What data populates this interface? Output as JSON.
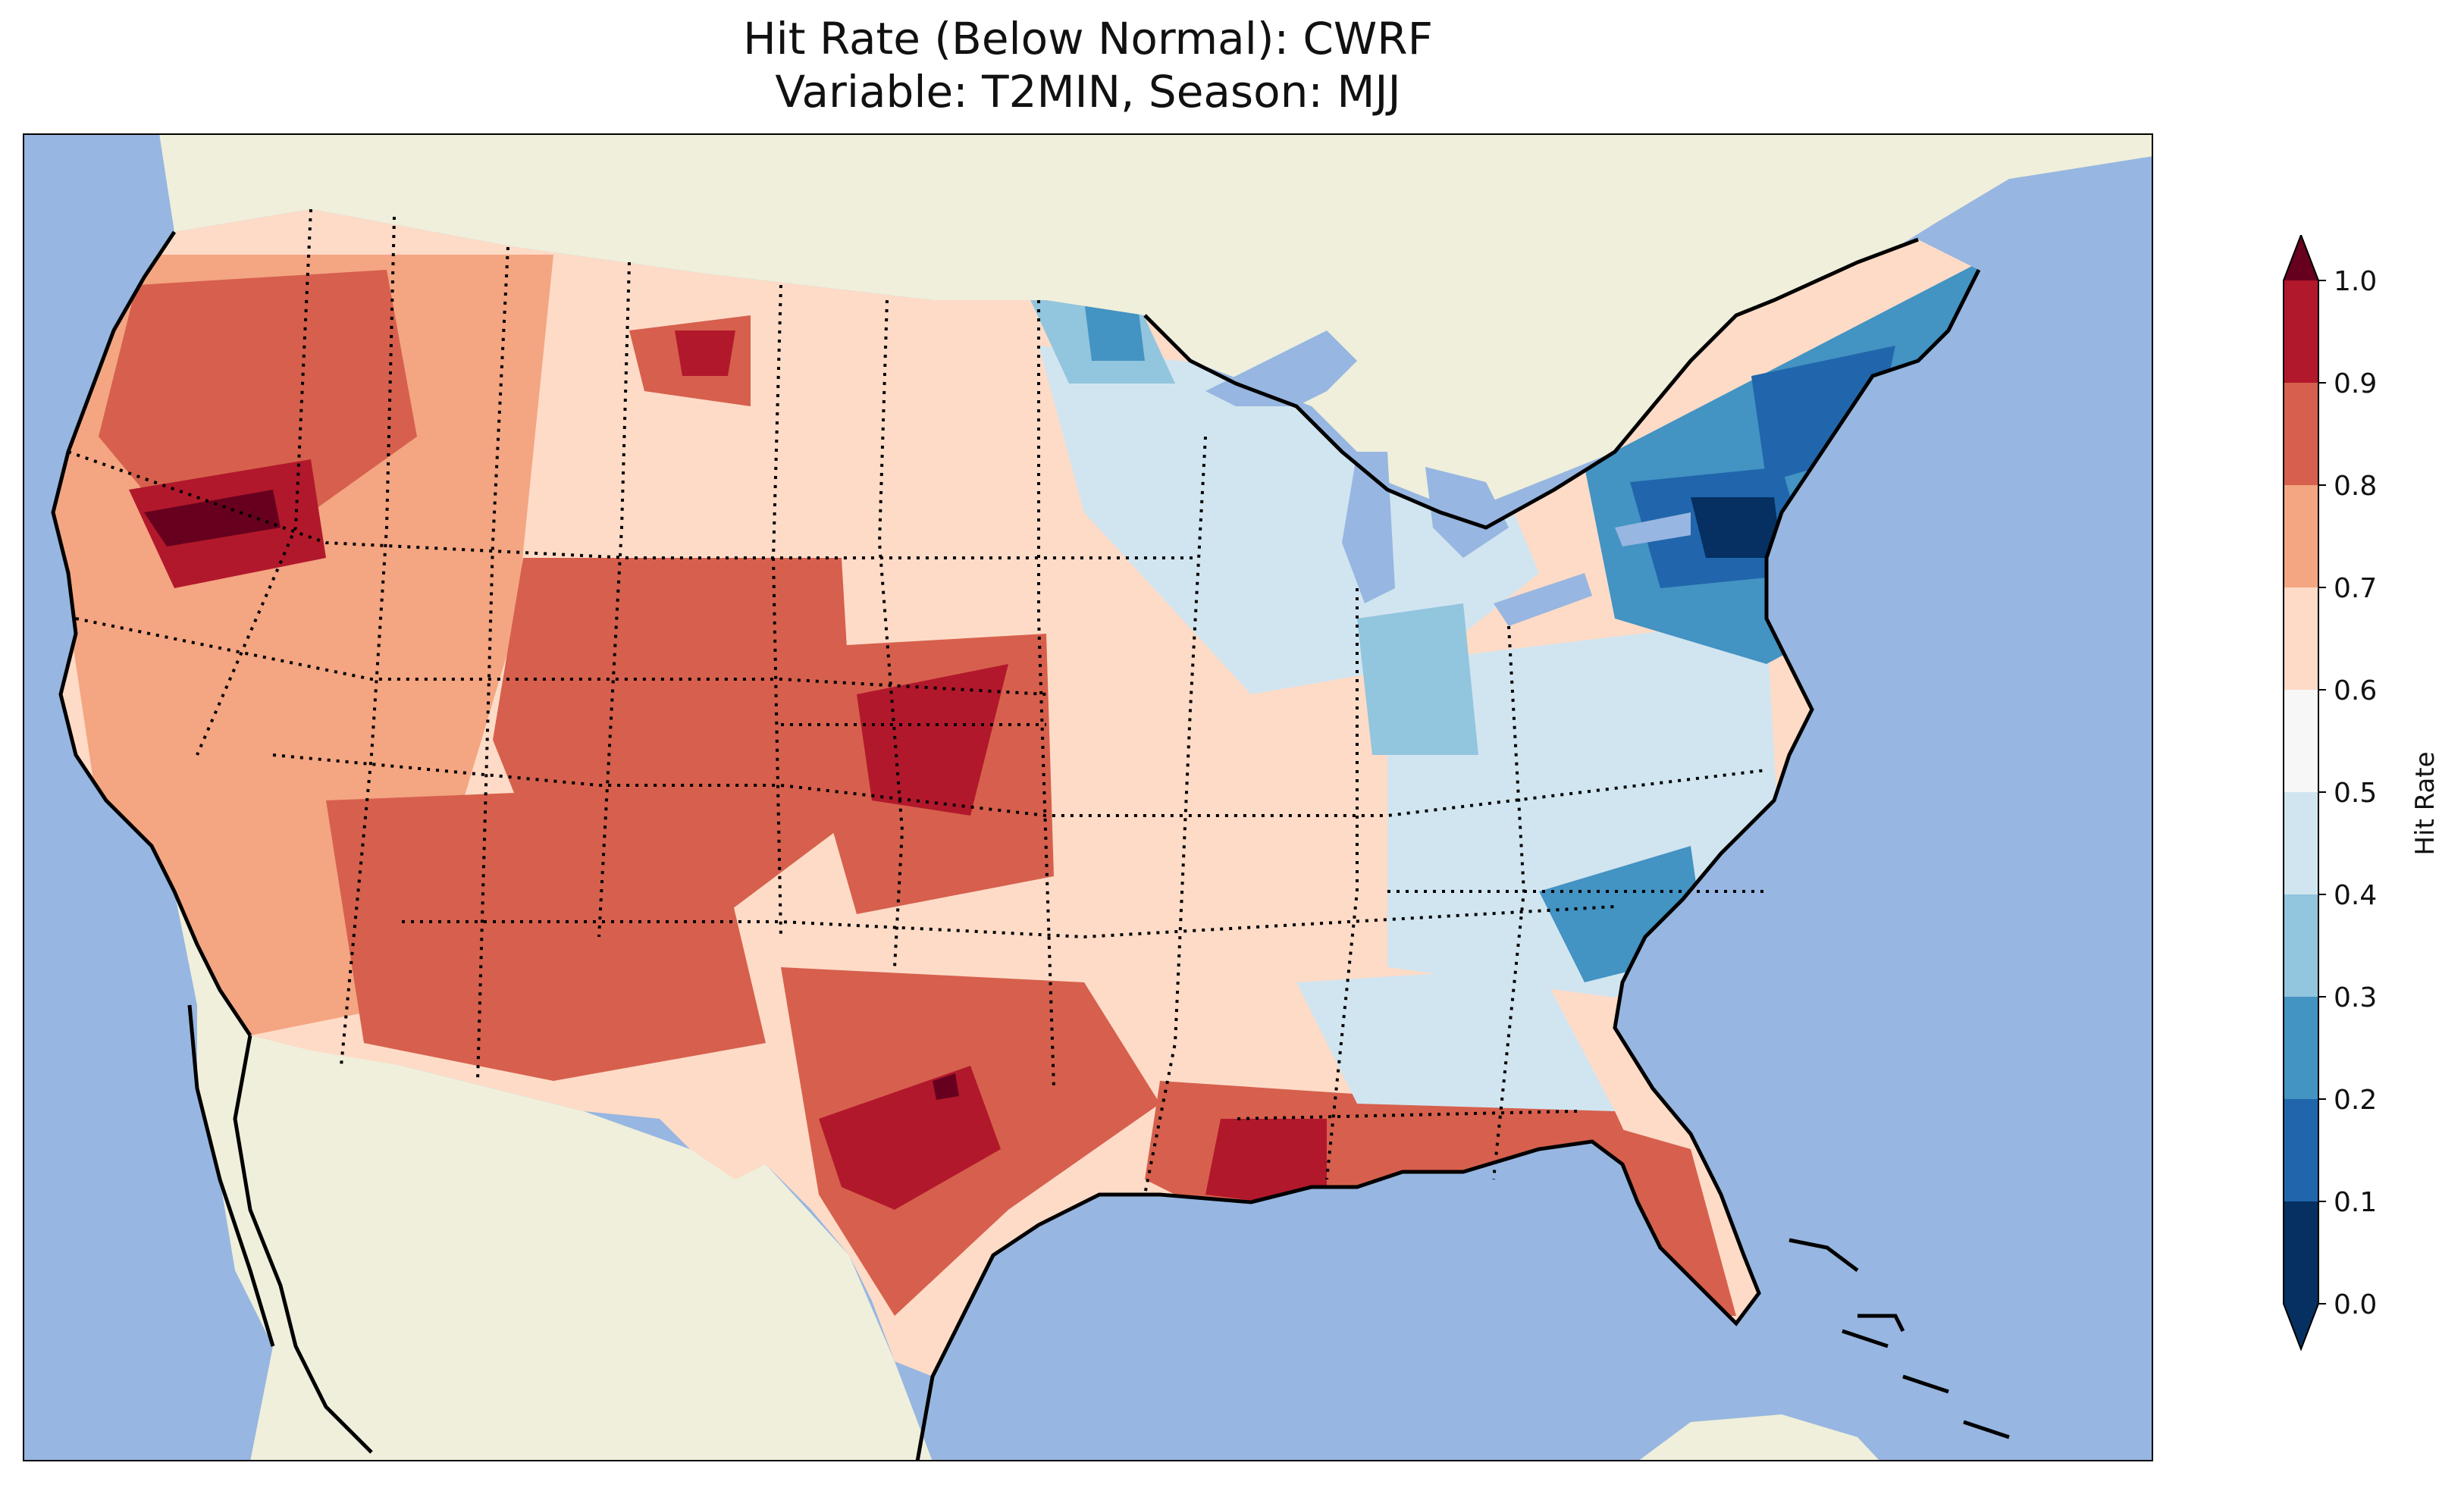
{
  "title": {
    "line1": "Hit Rate (Below Normal): CWRF",
    "line2": "Variable: T2MIN, Season: MJJ"
  },
  "colorbar": {
    "label": "Hit Rate",
    "ticks": [
      "0.0",
      "0.1",
      "0.2",
      "0.3",
      "0.4",
      "0.5",
      "0.6",
      "0.7",
      "0.8",
      "0.9",
      "1.0"
    ],
    "colors": [
      "#053061",
      "#2166ac",
      "#4393c3",
      "#92c5de",
      "#d1e5f0",
      "#f7f7f7",
      "#fddbc7",
      "#f4a582",
      "#d6604d",
      "#b2182b",
      "#67001f"
    ],
    "over_color": "#67001f",
    "under_color": "#053061"
  },
  "map": {
    "ocean_color": "#97b6e1",
    "land_color": "#efefdb",
    "regions": [
      {
        "name": "pacific-northwest",
        "value": 0.7
      },
      {
        "name": "northern-california-nevada",
        "value": 0.85
      },
      {
        "name": "great-basin",
        "value": 0.7
      },
      {
        "name": "montana",
        "value": 0.65
      },
      {
        "name": "rocky-mountains",
        "value": 0.75
      },
      {
        "name": "nebraska-kansas",
        "value": 0.8
      },
      {
        "name": "southern-plains",
        "value": 0.72
      },
      {
        "name": "south-texas",
        "value": 0.82
      },
      {
        "name": "louisiana-gulf",
        "value": 0.85
      },
      {
        "name": "florida",
        "value": 0.75
      },
      {
        "name": "southeast",
        "value": 0.55
      },
      {
        "name": "upper-midwest",
        "value": 0.4
      },
      {
        "name": "ohio-valley",
        "value": 0.42
      },
      {
        "name": "carolinas",
        "value": 0.3
      },
      {
        "name": "new-york",
        "value": 0.12
      },
      {
        "name": "new-england",
        "value": 0.2
      }
    ]
  }
}
